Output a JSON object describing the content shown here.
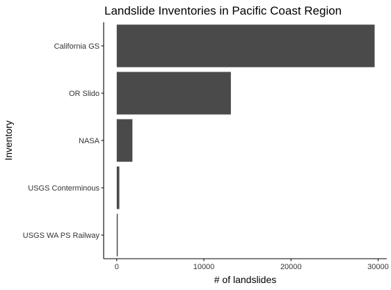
{
  "chart_data": {
    "type": "bar",
    "orientation": "horizontal",
    "title": "Landslide Inventories in Pacific Coast Region",
    "xlabel": "# of landslides",
    "ylabel": "Inventory",
    "categories": [
      "California GS",
      "OR Slido",
      "NASA",
      "USGS Conterminous",
      "USGS WA PS Railway"
    ],
    "values": [
      29600,
      13100,
      1800,
      300,
      120
    ],
    "xlim": [
      -1500,
      31000
    ],
    "xticks": [
      0,
      10000,
      20000,
      30000
    ],
    "xtick_labels": [
      "0",
      "10000",
      "20000",
      "30000"
    ],
    "bar_color": "#4a4a4a",
    "grid": false,
    "legend": "none"
  }
}
